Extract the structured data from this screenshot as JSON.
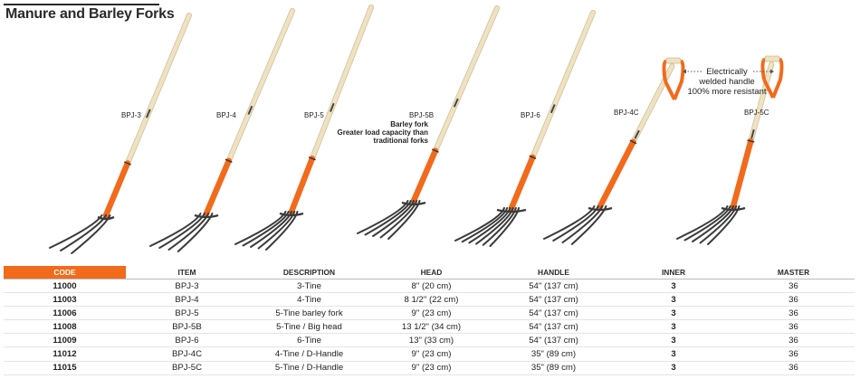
{
  "title": "Manure and Barley Forks",
  "forks": [
    {
      "model": "BPJ-3",
      "tines": 3,
      "handle": "straight"
    },
    {
      "model": "BPJ-4",
      "tines": 4,
      "handle": "straight"
    },
    {
      "model": "BPJ-5",
      "tines": 5,
      "handle": "straight"
    },
    {
      "model": "BPJ-5B",
      "tines": 5,
      "handle": "straight",
      "note": [
        "Barley fork",
        "Greater load capacity than",
        "traditional forks"
      ]
    },
    {
      "model": "BPJ-6",
      "tines": 6,
      "handle": "straight"
    },
    {
      "model": "BPJ-4C",
      "tines": 4,
      "handle": "d-handle"
    },
    {
      "model": "BPJ-5C",
      "tines": 5,
      "handle": "d-handle"
    }
  ],
  "callout": [
    "Electrically",
    "welded handle",
    "100% more resistant"
  ],
  "table": {
    "headers": [
      "CODE",
      "ITEM",
      "DESCRIPTION",
      "HEAD",
      "HANDLE",
      "INNER",
      "MASTER"
    ],
    "rows": [
      [
        "11000",
        "BPJ-3",
        "3-Tine",
        "8\" (20 cm)",
        "54\" (137 cm)",
        "3",
        "36"
      ],
      [
        "11003",
        "BPJ-4",
        "4-Tine",
        "8 1/2\" (22 cm)",
        "54\" (137 cm)",
        "3",
        "36"
      ],
      [
        "11006",
        "BPJ-5",
        "5-Tine barley fork",
        "9\" (23 cm)",
        "54\" (137 cm)",
        "3",
        "36"
      ],
      [
        "11008",
        "BPJ-5B",
        "5-Tine / Big head",
        "13 1/2\" (34 cm)",
        "54\" (137 cm)",
        "3",
        "36"
      ],
      [
        "11009",
        "BPJ-6",
        "6-Tine",
        "13\" (33 cm)",
        "54\" (137 cm)",
        "3",
        "36"
      ],
      [
        "11012",
        "BPJ-4C",
        "4-Tine / D-Handle",
        "9\" (23 cm)",
        "35\" (89 cm)",
        "3",
        "36"
      ],
      [
        "11015",
        "BPJ-5C",
        "5-Tine / D-Handle",
        "9\" (23 cm)",
        "35\" (89 cm)",
        "3",
        "36"
      ]
    ]
  },
  "colors": {
    "accent": "#f26a1b",
    "wood": "#efe2c2",
    "steel": "#3a3a3a"
  }
}
